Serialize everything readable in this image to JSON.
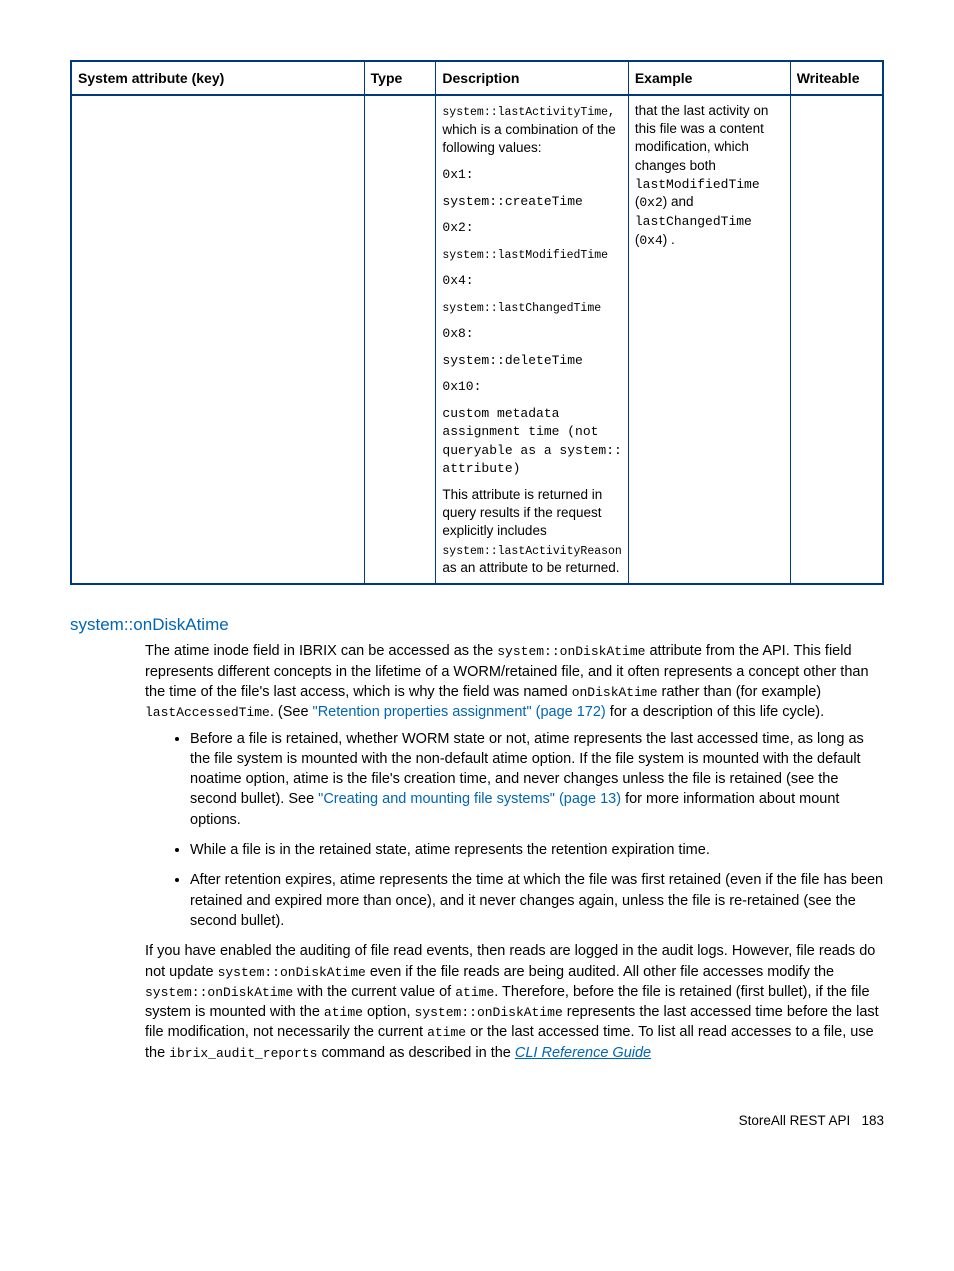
{
  "table": {
    "columns": [
      "System attribute (key)",
      "Type",
      "Description",
      "Example",
      "Writeable"
    ],
    "row": {
      "key": "",
      "type": "",
      "desc_intro_mono": "system::lastActivityTime,",
      "desc_intro_text": " which is a combination of the following values:",
      "desc_items": [
        {
          "code": "0x1:",
          "text": ""
        },
        {
          "code": "system::createTime",
          "text": ""
        },
        {
          "code": "0x2:",
          "text": ""
        },
        {
          "code": "system::lastModifiedTime",
          "text": ""
        },
        {
          "code": "0x4:",
          "text": ""
        },
        {
          "code": "system::lastChangedTime",
          "text": ""
        },
        {
          "code": "0x8:",
          "text": ""
        },
        {
          "code": "system::deleteTime",
          "text": ""
        },
        {
          "code": "0x10:",
          "text": ""
        },
        {
          "code": "custom metadata assignment time (not queryable as a system:: attribute)",
          "text": ""
        }
      ],
      "desc_tail_pre": "This attribute is returned in query results if the request explicitly includes ",
      "desc_tail_mono": "system::lastActivityReason",
      "desc_tail_post": " as an attribute to be returned.",
      "example_pre": "that the last activity on this file was a content modification, which changes both ",
      "example_m1": "lastModifiedTime",
      "example_mid1": " (",
      "example_m2": "0x2",
      "example_mid2": ") and ",
      "example_m3": "lastChangedTime",
      "example_mid3": " (",
      "example_m4": "0x4",
      "example_end": ") .",
      "writeable": ""
    }
  },
  "section_title": "system::onDiskAtime",
  "para1_a": "The atime inode field in IBRIX can be accessed as the ",
  "para1_m1": "system::onDiskAtime",
  "para1_b": " attribute from the API. This field represents different concepts in the lifetime of a WORM/retained file, and it often represents a concept other than the time of the file's last access, which is why the field was named ",
  "para1_m2": "onDiskAtime",
  "para1_c": " rather than (for example) ",
  "para1_m3": "lastAccessedTime",
  "para1_d": ". (See ",
  "para1_link": "\"Retention properties assignment\" (page 172)",
  "para1_e": " for a description of this life cycle).",
  "bullets": [
    {
      "a": "Before a file is retained, whether WORM state or not, atime represents the last accessed time, as long as the file system is mounted with the non-default atime option. If the file system is mounted with the default noatime option, atime is the file's creation time, and never changes unless the file is retained (see the second bullet). See ",
      "link": "\"Creating and mounting file systems\" (page 13)",
      "b": " for more information about mount options."
    },
    {
      "a": "While a file is in the retained state, atime represents the retention expiration time.",
      "link": "",
      "b": ""
    },
    {
      "a": "After retention expires, atime represents the time at which the file was first retained (even if the file has been retained and expired more than once), and it never changes again, unless the file is re-retained (see the second bullet).",
      "link": "",
      "b": ""
    }
  ],
  "para2_a": "If you have enabled the auditing of file read events, then reads are logged in the audit logs. However, file reads do not update ",
  "para2_m1": "system::onDiskAtime",
  "para2_b": " even if the file reads are being audited. All other file accesses modify the ",
  "para2_m2": "system::onDiskAtime",
  "para2_c": " with the current value of ",
  "para2_m3": "atime",
  "para2_d": ". Therefore, before the file is retained (first bullet), if the file system is mounted with the ",
  "para2_m4": "atime",
  "para2_e": " option, ",
  "para2_m5": "system::onDiskAtime",
  "para2_f": " represents the last accessed time before the last file modification, not necessarily the current ",
  "para2_m6": "atime",
  "para2_g": " or the last accessed time. To list all read accesses to a file, use the ",
  "para2_m7": "ibrix_audit_reports",
  "para2_h": " command as described in the ",
  "para2_link": "CLI Reference Guide",
  "footer_text": "StoreAll REST API",
  "footer_page": "183"
}
